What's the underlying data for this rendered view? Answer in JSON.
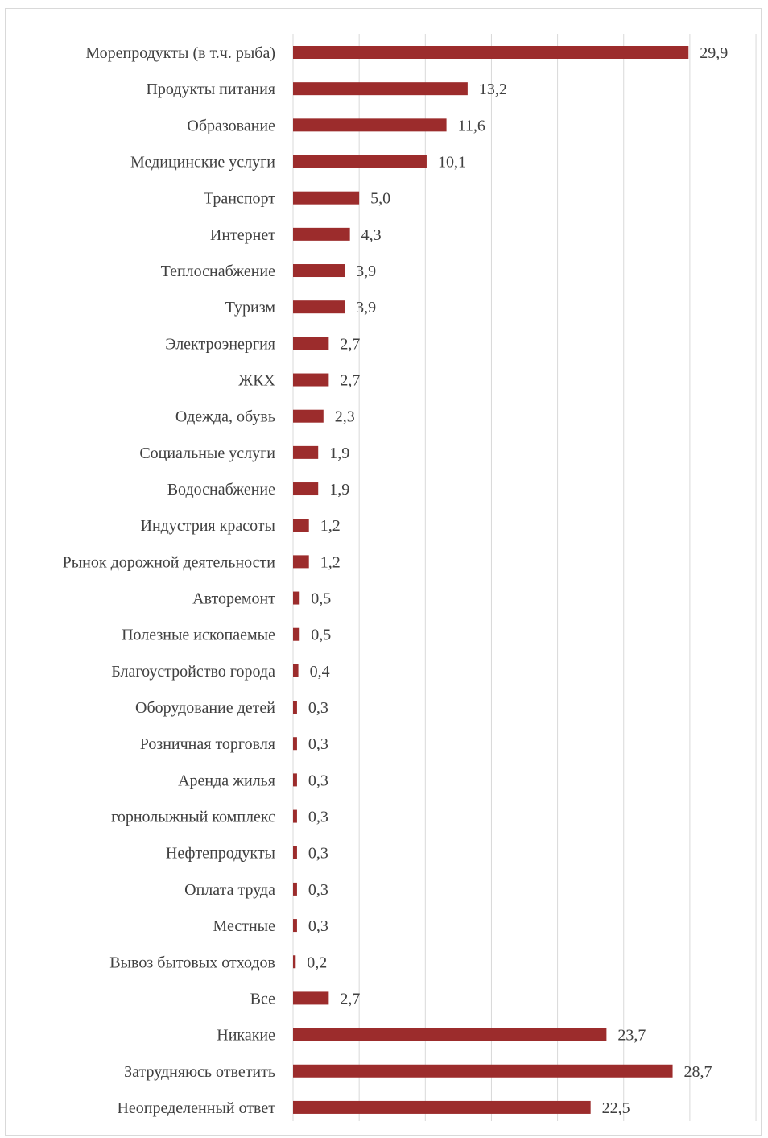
{
  "chart_data": {
    "type": "bar",
    "orientation": "horizontal",
    "title": "",
    "xlabel": "",
    "ylabel": "",
    "xlim": [
      0,
      35
    ],
    "grid": true,
    "legend": "none",
    "bar_color": "#9c2c2c",
    "categories": [
      "Морепродукты (в т.ч. рыба)",
      "Продукты питания",
      "Образование",
      "Медицинские услуги",
      "Транспорт",
      "Интернет",
      "Теплоснабжение",
      "Туризм",
      "Электроэнергия",
      "ЖКХ",
      "Одежда, обувь",
      "Социальные услуги",
      "Водоснабжение",
      "Индустрия красоты",
      "Рынок дорожной деятельности",
      "Авторемонт",
      "Полезные ископаемые",
      "Благоустройство города",
      "Оборудование детей",
      "Розничная торговля",
      "Аренда жилья",
      "горнолыжный комплекс",
      "Нефтепродукты",
      "Оплата труда",
      "Местные",
      "Вывоз бытовых отходов",
      "Все",
      "Никакие",
      "Затрудняюсь ответить",
      "Неопределенный ответ"
    ],
    "values": [
      29.9,
      13.2,
      11.6,
      10.1,
      5.0,
      4.3,
      3.9,
      3.9,
      2.7,
      2.7,
      2.3,
      1.9,
      1.9,
      1.2,
      1.2,
      0.5,
      0.5,
      0.4,
      0.3,
      0.3,
      0.3,
      0.3,
      0.3,
      0.3,
      0.3,
      0.2,
      2.7,
      23.7,
      28.7,
      22.5
    ],
    "value_labels": [
      "29,9",
      "13,2",
      "11,6",
      "10,1",
      "5,0",
      "4,3",
      "3,9",
      "3,9",
      "2,7",
      "2,7",
      "2,3",
      "1,9",
      "1,9",
      "1,2",
      "1,2",
      "0,5",
      "0,5",
      "0,4",
      "0,3",
      "0,3",
      "0,3",
      "0,3",
      "0,3",
      "0,3",
      "0,3",
      "0,2",
      "2,7",
      "23,7",
      "28,7",
      "22,5"
    ]
  }
}
